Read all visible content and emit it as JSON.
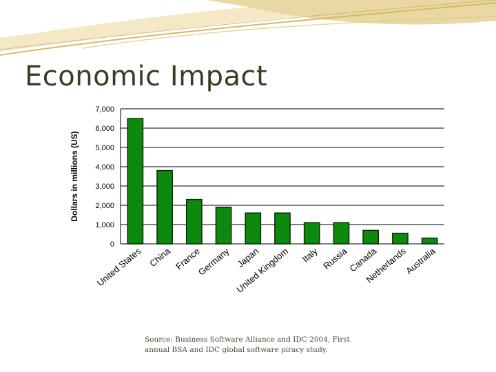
{
  "slide": {
    "title": "Economic Impact",
    "source": "Source: Business Software Alliance and IDC 2004, First annual BSA and IDC global software piracy study."
  },
  "colors": {
    "bar": "#0d8a0d",
    "bar_edge": "#0a2a0a",
    "title": "#3d3b24",
    "accent_tan": "#e9d8a4",
    "accent_gold": "#d8b860"
  },
  "chart_data": {
    "type": "bar",
    "ylabel": "Dollars in millions (US)",
    "ylim": [
      0,
      7000
    ],
    "yticks": [
      0,
      1000,
      2000,
      3000,
      4000,
      5000,
      6000,
      7000
    ],
    "ytick_labels": [
      "0",
      "1,000",
      "2,000",
      "3,000",
      "4,000",
      "5,000",
      "6,000",
      "7,000"
    ],
    "grid": true,
    "categories": [
      "United States",
      "China",
      "France",
      "Germany",
      "Japan",
      "United Kingdom",
      "Italy",
      "Russia",
      "Canada",
      "Netherlands",
      "Australia"
    ],
    "values": [
      6500,
      3800,
      2300,
      1900,
      1600,
      1600,
      1100,
      1100,
      700,
      550,
      300
    ]
  }
}
